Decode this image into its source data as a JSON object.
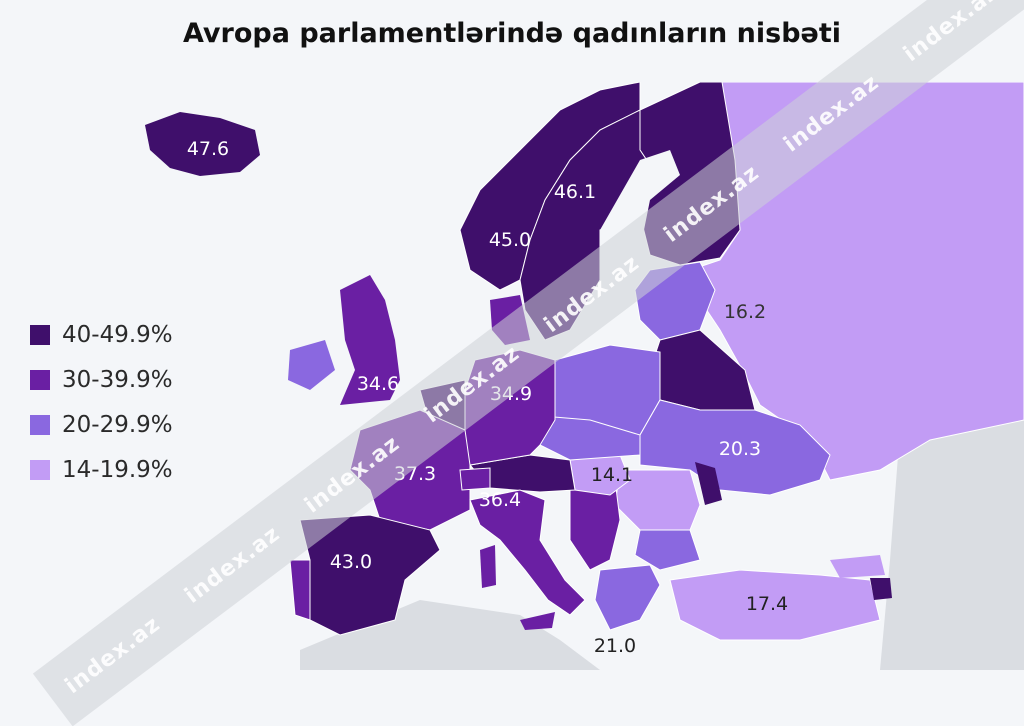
{
  "title": "Avropa parlamentlərində qadınların nisbəti",
  "legend": [
    {
      "label": "40-49.9%",
      "color": "#3f0f6b"
    },
    {
      "label": "30-39.9%",
      "color": "#6a1fa3"
    },
    {
      "label": "20-29.9%",
      "color": "#8a68e0"
    },
    {
      "label": "14-19.9%",
      "color": "#c29cf5"
    }
  ],
  "values": {
    "iceland": "47.6",
    "sweden": "46.1",
    "norway": "45.0",
    "russia": "16.2",
    "uk": "34.6",
    "germany": "34.9",
    "ukraine": "20.3",
    "france": "37.3",
    "hungary": "14.1",
    "italy": "36.4",
    "spain": "43.0",
    "turkey": "17.4",
    "greece": "21.0"
  },
  "watermark": [
    "index.az",
    "index.az",
    "index.az",
    "index.az",
    "index.az",
    "index.az",
    "index.az",
    "index.az"
  ]
}
